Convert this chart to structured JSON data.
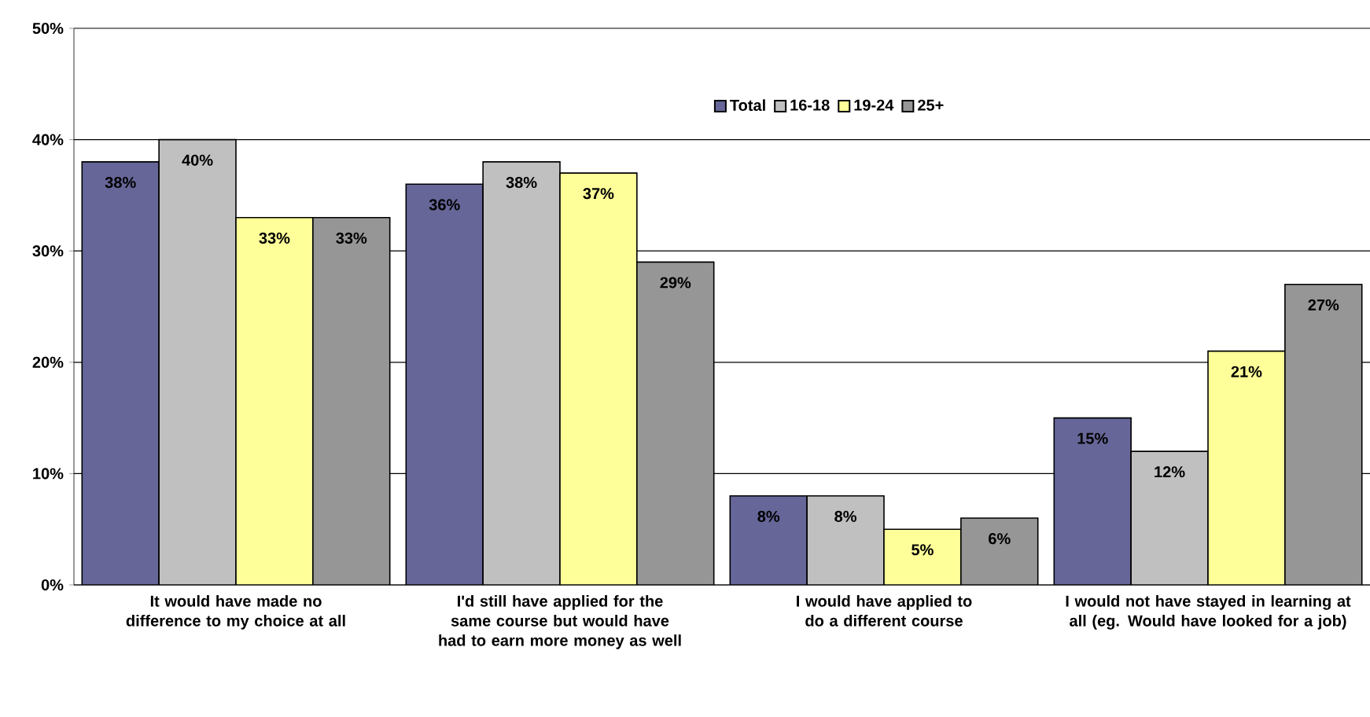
{
  "chart_data": {
    "type": "bar",
    "categories": [
      "It would have made no difference to my choice at all",
      "I'd still have applied for the same course but would have had to earn more money as well",
      "I would have applied to do a different course",
      "I would not have stayed in learning at all (eg. Would have looked for a job)"
    ],
    "series": [
      {
        "name": "Total",
        "color": "#666699",
        "values": [
          38,
          36,
          8,
          15
        ],
        "value_labels": [
          "38%",
          "36%",
          "8%",
          "15%"
        ]
      },
      {
        "name": "16-18",
        "color": "#c0c0c0",
        "values": [
          40,
          38,
          8,
          12
        ],
        "value_labels": [
          "40%",
          "38%",
          "8%",
          "12%"
        ]
      },
      {
        "name": "19-24",
        "color": "#ffff99",
        "values": [
          33,
          37,
          5,
          21
        ],
        "value_labels": [
          "33%",
          "37%",
          "5%",
          "21%"
        ]
      },
      {
        "name": "25+",
        "color": "#969696",
        "values": [
          33,
          29,
          6,
          27
        ],
        "value_labels": [
          "33%",
          "29%",
          "6%",
          "27%"
        ]
      }
    ],
    "ylim": [
      0,
      50
    ],
    "yticks": [
      {
        "value": 0,
        "label": "0%"
      },
      {
        "value": 10,
        "label": "10%"
      },
      {
        "value": 20,
        "label": "20%"
      },
      {
        "value": 30,
        "label": "30%"
      },
      {
        "value": 40,
        "label": "40%"
      },
      {
        "value": 50,
        "label": "50%"
      }
    ],
    "grid": "y",
    "legend": "top right"
  }
}
